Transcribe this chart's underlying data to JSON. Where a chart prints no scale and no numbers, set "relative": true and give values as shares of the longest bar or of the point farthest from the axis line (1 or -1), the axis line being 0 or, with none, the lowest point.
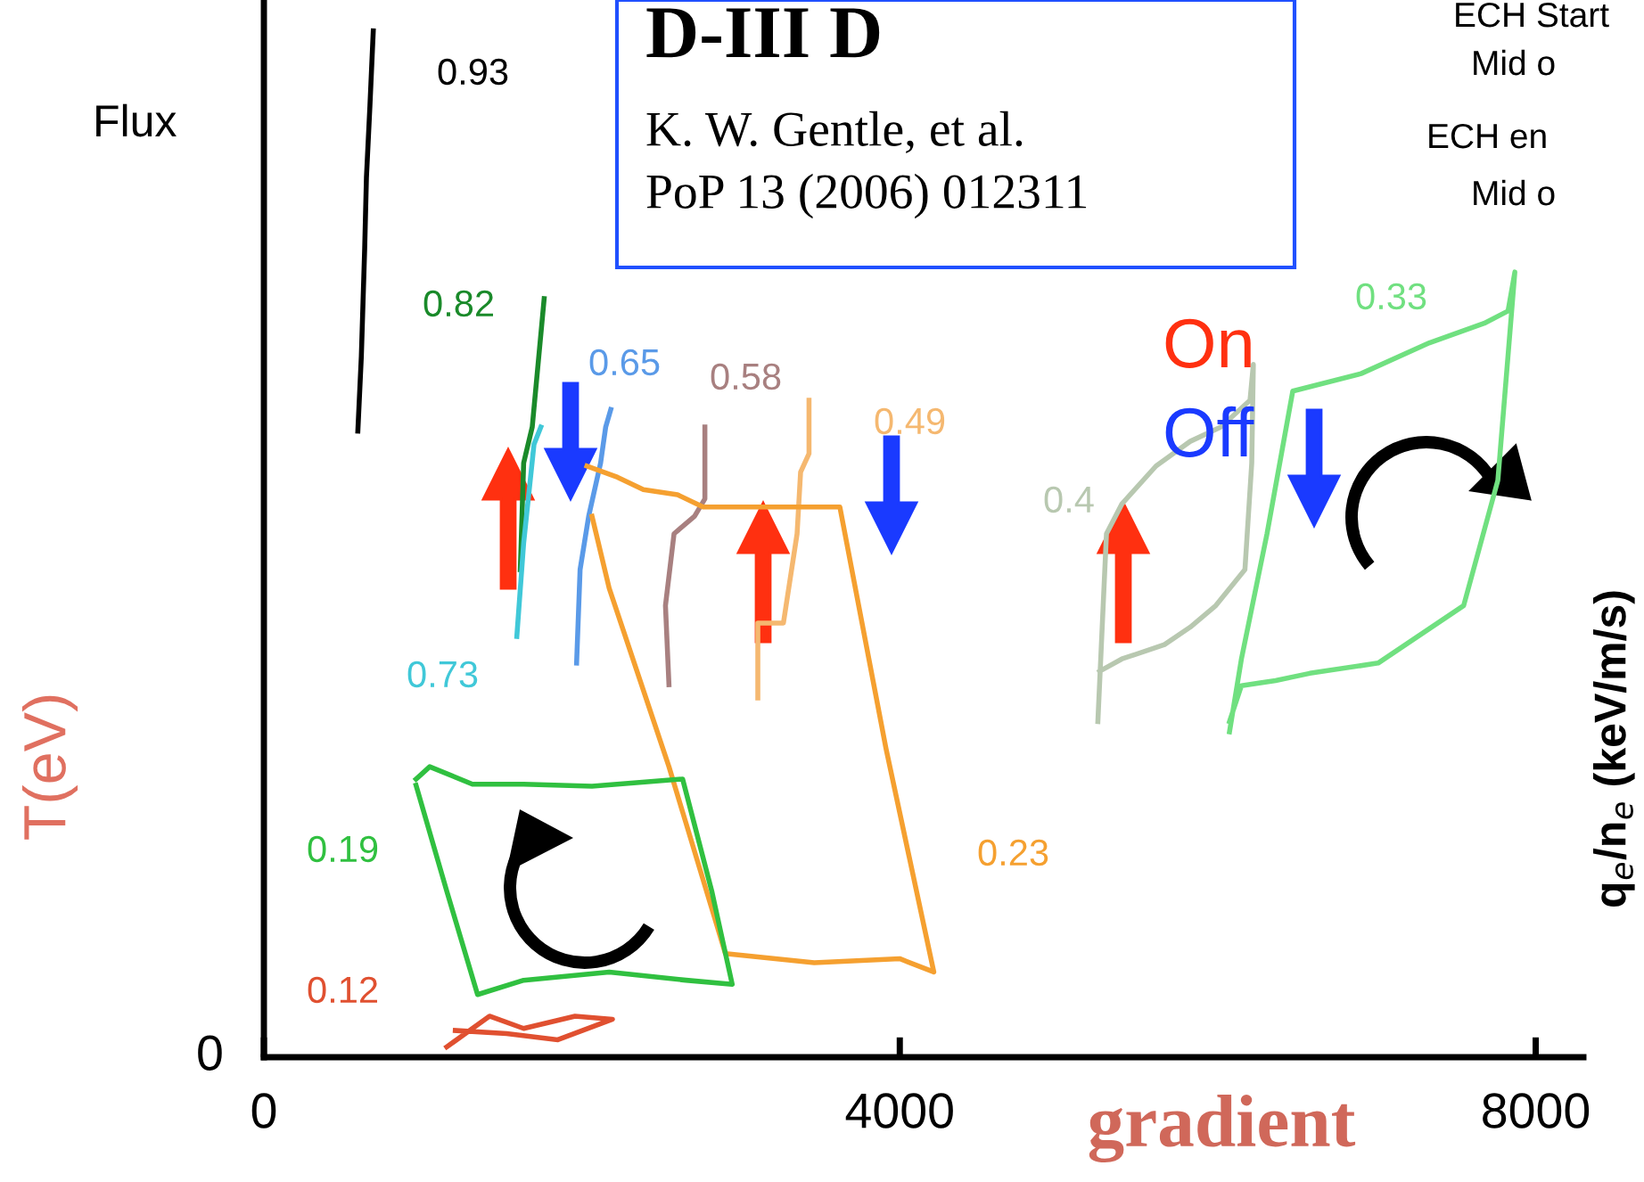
{
  "chart_data": {
    "type": "line",
    "relative": true,
    "xlabel": "gradient",
    "ylabel": "T(eV)",
    "y2label": "q$_{e}$/n$_{e}$ (keV/m/s)",
    "xlim": [
      0,
      8300
    ],
    "xticks": [
      0,
      4000,
      8000
    ],
    "annotations": [
      "D-III D",
      "K. W. Gentle, et al.",
      "PoP 13 (2006) 012311",
      "Flux",
      "0",
      "ECH Start",
      "Mid o",
      "ECH en",
      "Mid o",
      "On",
      "Off"
    ],
    "series": [
      {
        "name": "0.93",
        "color": "#000000",
        "x": [
          591,
          613,
          634,
          645,
          667,
          688
        ],
        "values": [
          0.61,
          0.683,
          0.788,
          0.857,
          0.927,
          1.0
        ]
      },
      {
        "name": "0.82",
        "color": "#1a8a2a",
        "x": [
          1613,
          1634,
          1688,
          1763
        ],
        "values": [
          0.475,
          0.579,
          0.614,
          0.739
        ]
      },
      {
        "name": "0.73",
        "color": "#40c8d8",
        "x": [
          1591,
          1634,
          1699,
          1742
        ],
        "values": [
          0.41,
          0.501,
          0.597,
          0.614
        ]
      },
      {
        "name": "0.65",
        "color": "#5a9ae8",
        "x": [
          1967,
          1989,
          2043,
          2118,
          2150,
          2182
        ],
        "values": [
          0.384,
          0.475,
          0.527,
          0.579,
          0.614,
          0.631
        ]
      },
      {
        "name": "0.58",
        "color": "#a88080",
        "x": [
          2548,
          2526,
          2580,
          2709,
          2774,
          2774
        ],
        "values": [
          0.363,
          0.44,
          0.51,
          0.527,
          0.544,
          0.614
        ]
      },
      {
        "name": "0.49",
        "color": "#f5b870",
        "x": [
          3107,
          3107,
          3268,
          3354,
          3376,
          3429,
          3429
        ],
        "values": [
          0.35,
          0.423,
          0.423,
          0.51,
          0.57,
          0.588,
          0.64
        ]
      },
      {
        "name": "0.4",
        "color": "#b8c8b0",
        "x": [
          5246,
          5300,
          5397,
          5612,
          5827,
          6020,
          6203,
          6224,
          6214,
          6171,
          5988,
          5827,
          5665,
          5397,
          5257
        ],
        "values": [
          0.327,
          0.51,
          0.539,
          0.576,
          0.6,
          0.614,
          0.64,
          0.675,
          0.579,
          0.475,
          0.44,
          0.419,
          0.402,
          0.388,
          0.376
        ]
      },
      {
        "name": "0.33",
        "color": "#70e080",
        "x": [
          6074,
          6149,
          6310,
          6472,
          6902,
          7332,
          7676,
          7826,
          7869,
          7762,
          7547,
          7009,
          6579,
          6364,
          6149,
          6074
        ],
        "values": [
          0.317,
          0.388,
          0.51,
          0.649,
          0.666,
          0.696,
          0.715,
          0.727,
          0.765,
          0.562,
          0.44,
          0.384,
          0.374,
          0.367,
          0.362,
          0.327
        ]
      },
      {
        "name": "0.23",
        "color": "#f5a030",
        "x": [
          2032,
          2225,
          2387,
          2602,
          2763,
          3139,
          3623,
          3913,
          4214,
          3999,
          3462,
          2903,
          2548,
          2172,
          2064
        ],
        "values": [
          0.576,
          0.565,
          0.553,
          0.548,
          0.536,
          0.536,
          0.536,
          0.301,
          0.083,
          0.096,
          0.092,
          0.101,
          0.283,
          0.457,
          0.527
        ]
      },
      {
        "name": "0.19",
        "color": "#30c040",
        "x": [
          957,
          1043,
          1312,
          1634,
          2064,
          2634,
          2817,
          2946,
          2655,
          2172,
          1634,
          1344,
          1150,
          957
        ],
        "values": [
          0.271,
          0.283,
          0.266,
          0.266,
          0.264,
          0.271,
          0.162,
          0.071,
          0.075,
          0.083,
          0.075,
          0.061,
          0.162,
          0.265
        ]
      },
      {
        "name": "0.12",
        "color": "#e05030",
        "x": [
          1150,
          1419,
          1634,
          1957,
          2193,
          1849,
          1527,
          1204
        ],
        "values": [
          0.01,
          0.04,
          0.028,
          0.04,
          0.037,
          0.017,
          0.023,
          0.026
        ]
      }
    ]
  }
}
